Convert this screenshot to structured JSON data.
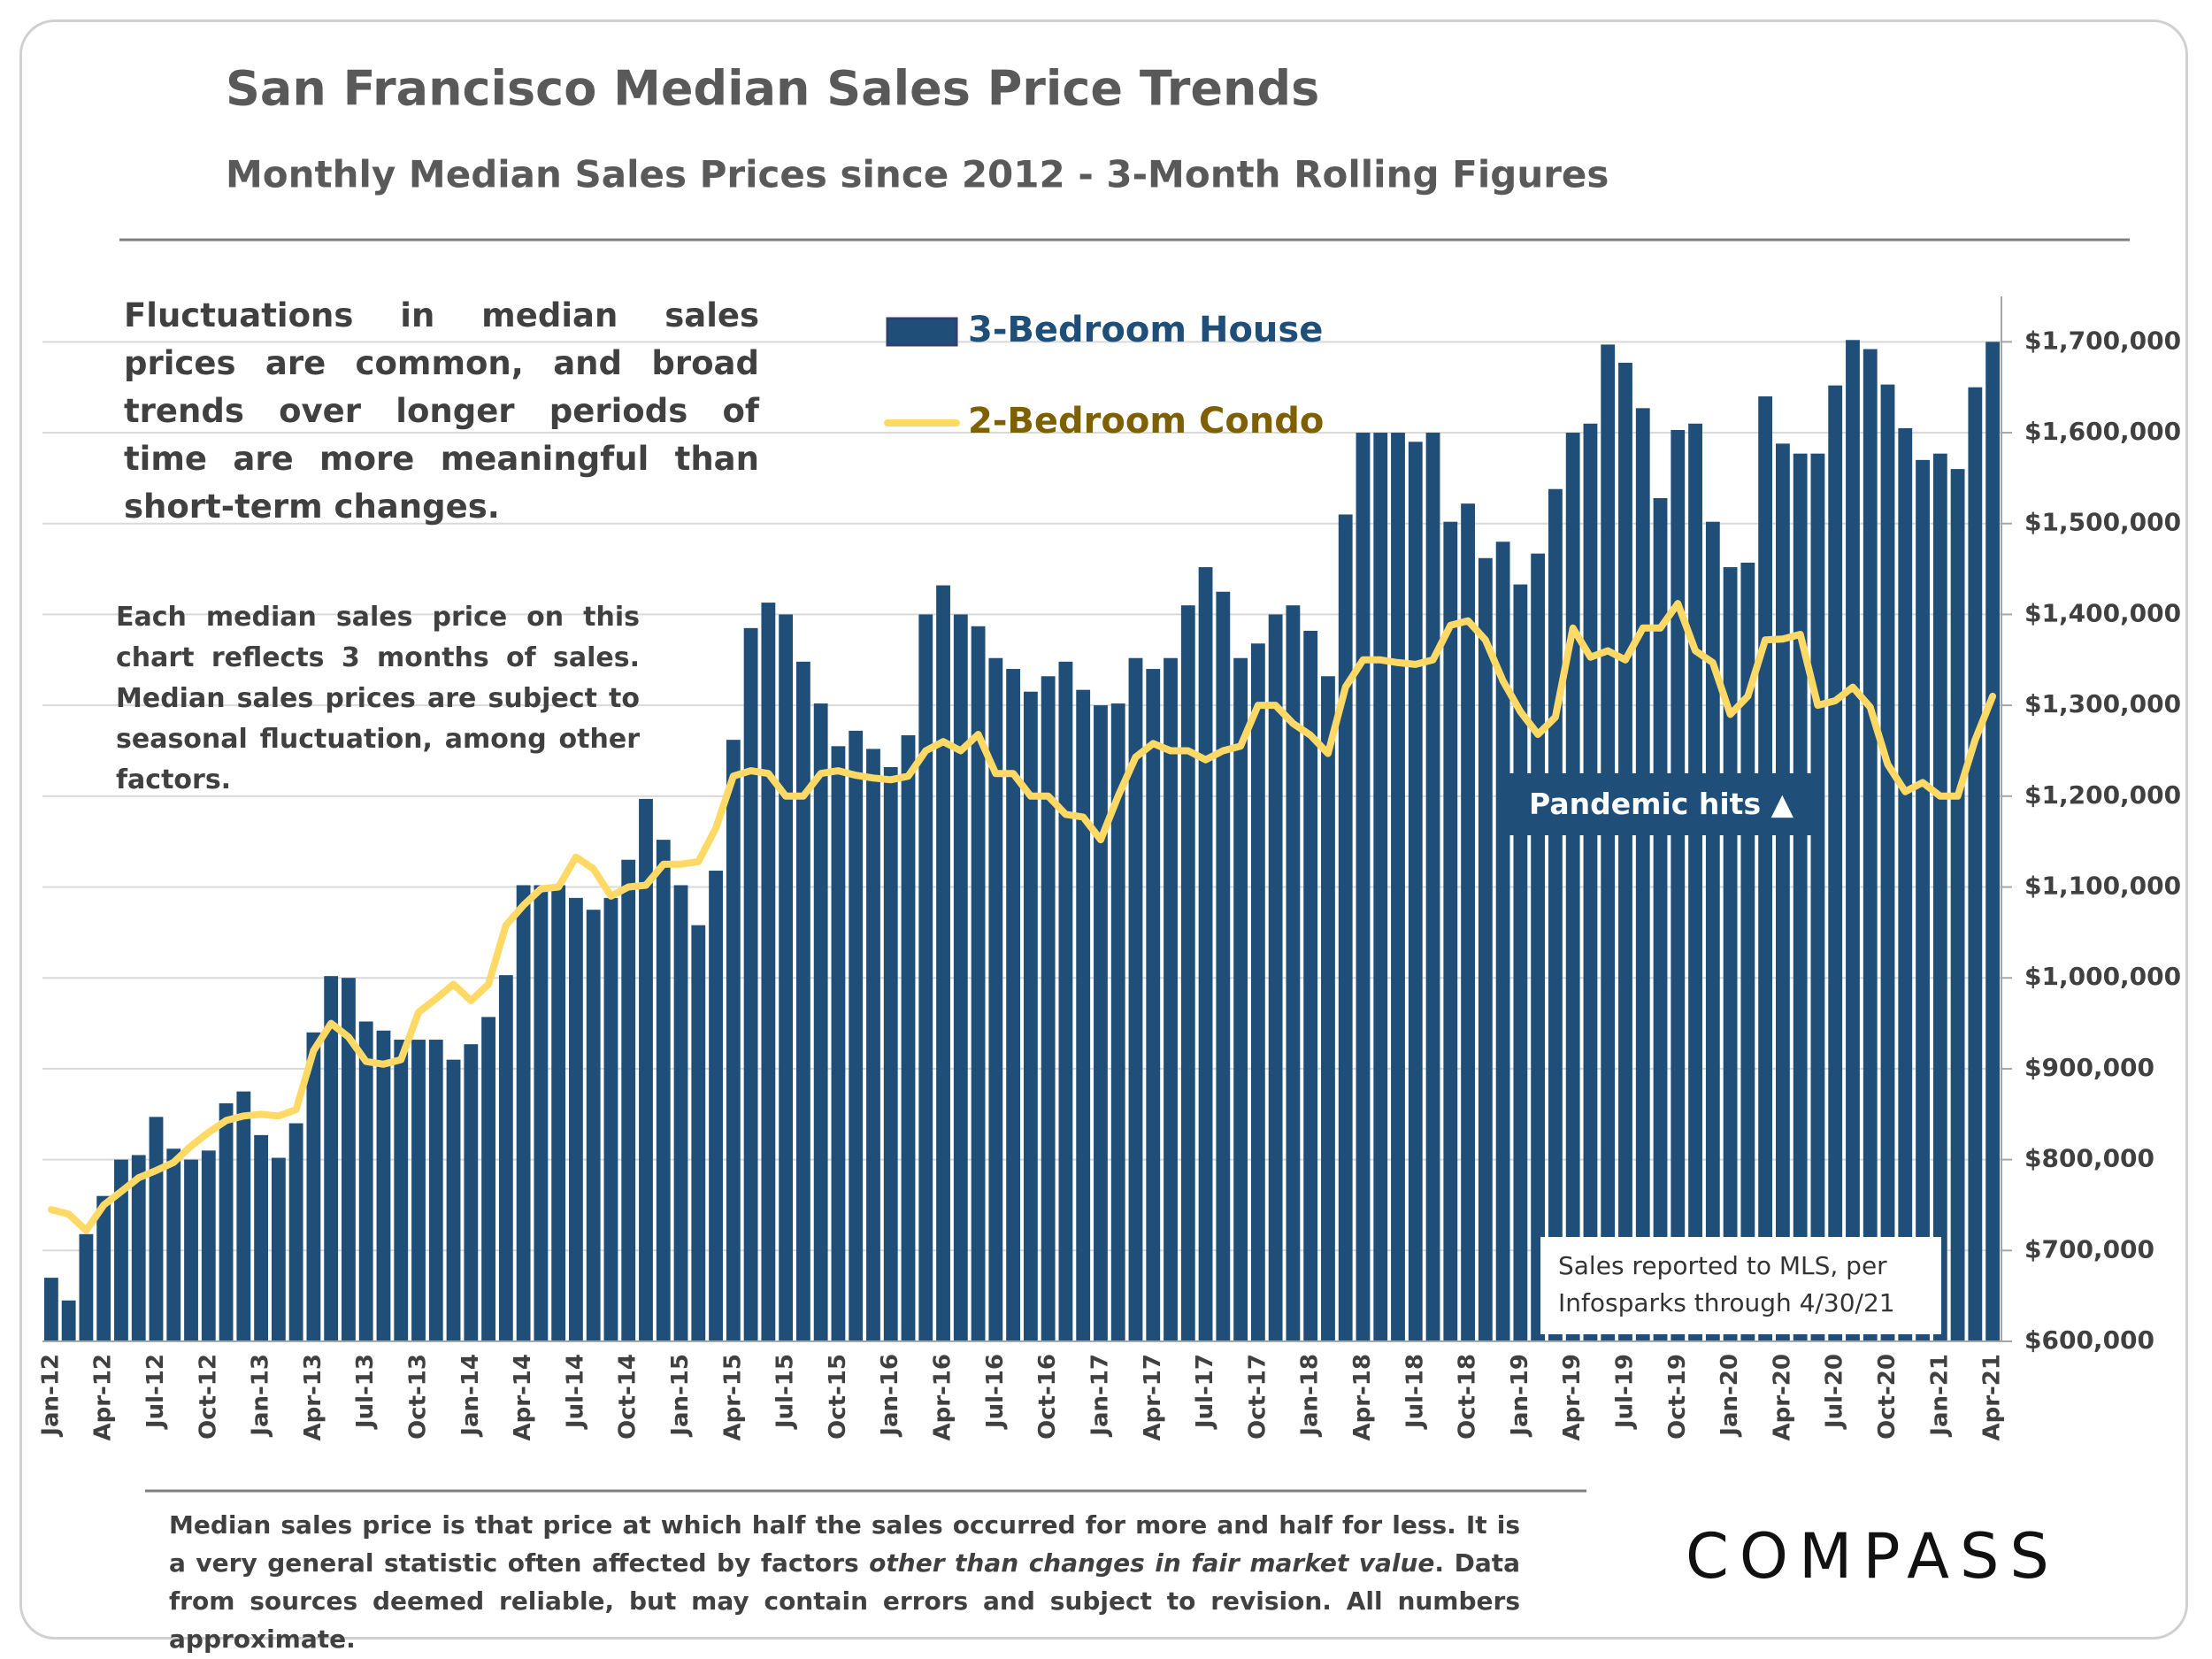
{
  "chart_data": {
    "type": "bar",
    "title": "San Francisco Median Sales Price Trends",
    "subtitle": "Monthly Median Sales Prices since 2012 - 3-Month Rolling Figures",
    "annotations": [
      "Fluctuations in median sales prices are common, and broad trends over longer periods of time are more meaningful than short-term changes.",
      "Each median sales price on this chart reflects 3 months of sales. Median sales prices are subject to seasonal fluctuation, among other factors.",
      "Pandemic hits ▲"
    ],
    "source": [
      "Sales reported to MLS, per",
      "Infosparks through 4/30/21"
    ],
    "footnote": [
      "Median sales price is that price at which half the sales occurred for more and half for less. It is a very general statistic often affected by factors ",
      "other than changes in fair market value",
      ". Data from sources deemed reliable, but may contain errors and subject to revision. All numbers approximate."
    ],
    "logo": "COMPASS",
    "categories": [
      "Jan-12",
      null,
      null,
      "Apr-12",
      null,
      null,
      "Jul-12",
      null,
      null,
      "Oct-12",
      null,
      null,
      "Jan-13",
      null,
      null,
      "Apr-13",
      null,
      null,
      "Jul-13",
      null,
      null,
      "Oct-13",
      null,
      null,
      "Jan-14",
      null,
      null,
      "Apr-14",
      null,
      null,
      "Jul-14",
      null,
      null,
      "Oct-14",
      null,
      null,
      "Jan-15",
      null,
      null,
      "Apr-15",
      null,
      null,
      "Jul-15",
      null,
      null,
      "Oct-15",
      null,
      null,
      "Jan-16",
      null,
      null,
      "Apr-16",
      null,
      null,
      "Jul-16",
      null,
      null,
      "Oct-16",
      null,
      null,
      "Jan-17",
      null,
      null,
      "Apr-17",
      null,
      null,
      "Jul-17",
      null,
      null,
      "Oct-17",
      null,
      null,
      "Jan-18",
      null,
      null,
      "Apr-18",
      null,
      null,
      "Jul-18",
      null,
      null,
      "Oct-18",
      null,
      null,
      "Jan-19",
      null,
      null,
      "Apr-19",
      null,
      null,
      "Jul-19",
      null,
      null,
      "Oct-19",
      null,
      null,
      "Jan-20",
      null,
      null,
      "Apr-20",
      null,
      null,
      "Jul-20",
      null,
      null,
      "Oct-20",
      null,
      null,
      "Jan-21",
      null,
      null,
      "Apr-21"
    ],
    "series": [
      {
        "name": "3-Bedroom House",
        "type": "bar",
        "color": "#1f4e79",
        "values": [
          670000,
          645000,
          718000,
          760000,
          800000,
          805000,
          847000,
          812000,
          800000,
          810000,
          862000,
          875000,
          827000,
          802000,
          840000,
          940000,
          1002000,
          1000000,
          952000,
          942000,
          932000,
          932000,
          932000,
          910000,
          927000,
          957000,
          1003000,
          1102000,
          1102000,
          1102000,
          1088000,
          1075000,
          1088000,
          1130000,
          1197000,
          1152000,
          1102000,
          1058000,
          1118000,
          1262000,
          1385000,
          1413000,
          1400000,
          1348000,
          1302000,
          1255000,
          1272000,
          1252000,
          1232000,
          1267000,
          1400000,
          1432000,
          1400000,
          1387000,
          1352000,
          1340000,
          1315000,
          1332000,
          1348000,
          1317000,
          1300000,
          1302000,
          1352000,
          1340000,
          1352000,
          1410000,
          1452000,
          1425000,
          1352000,
          1368000,
          1400000,
          1410000,
          1382000,
          1332000,
          1510000,
          1600000,
          1600000,
          1600000,
          1590000,
          1600000,
          1502000,
          1522000,
          1462000,
          1480000,
          1433000,
          1467000,
          1538000,
          1600000,
          1610000,
          1697000,
          1677000,
          1627000,
          1528000,
          1603000,
          1610000,
          1502000,
          1452000,
          1457000,
          1640000,
          1588000,
          1577000,
          1577000,
          1652000,
          1702000,
          1692000,
          1653000,
          1605000,
          1570000,
          1577000,
          1560000,
          1650000,
          1700000
        ]
      },
      {
        "name": "2-Bedroom Condo",
        "type": "line",
        "color": "#ffd966",
        "values": [
          745000,
          740000,
          722000,
          750000,
          765000,
          780000,
          788000,
          797000,
          815000,
          830000,
          843000,
          848000,
          850000,
          848000,
          855000,
          920000,
          950000,
          935000,
          908000,
          905000,
          910000,
          962000,
          977000,
          993000,
          975000,
          993000,
          1058000,
          1080000,
          1098000,
          1100000,
          1133000,
          1120000,
          1090000,
          1100000,
          1102000,
          1125000,
          1125000,
          1128000,
          1165000,
          1222000,
          1228000,
          1225000,
          1200000,
          1200000,
          1225000,
          1228000,
          1223000,
          1220000,
          1218000,
          1222000,
          1250000,
          1260000,
          1250000,
          1268000,
          1225000,
          1225000,
          1200000,
          1200000,
          1180000,
          1177000,
          1152000,
          1200000,
          1243000,
          1258000,
          1250000,
          1250000,
          1240000,
          1250000,
          1255000,
          1300000,
          1300000,
          1280000,
          1267000,
          1247000,
          1320000,
          1350000,
          1350000,
          1347000,
          1345000,
          1350000,
          1388000,
          1393000,
          1372000,
          1327000,
          1293000,
          1268000,
          1287000,
          1385000,
          1353000,
          1360000,
          1350000,
          1385000,
          1385000,
          1412000,
          1360000,
          1347000,
          1290000,
          1310000,
          1372000,
          1373000,
          1378000,
          1300000,
          1305000,
          1320000,
          1298000,
          1235000,
          1205000,
          1215000,
          1200000,
          1200000,
          1262000,
          1310000
        ]
      }
    ],
    "ylim": [
      600000,
      1750000
    ],
    "yticks": [
      {
        "value": 600000,
        "label": "$600,000"
      },
      {
        "value": 700000,
        "label": "$700,000"
      },
      {
        "value": 800000,
        "label": "$800,000"
      },
      {
        "value": 900000,
        "label": "$900,000"
      },
      {
        "value": 1000000,
        "label": "$1,000,000"
      },
      {
        "value": 1100000,
        "label": "$1,100,000"
      },
      {
        "value": 1200000,
        "label": "$1,200,000"
      },
      {
        "value": 1300000,
        "label": "$1,300,000"
      },
      {
        "value": 1400000,
        "label": "$1,400,000"
      },
      {
        "value": 1500000,
        "label": "$1,500,000"
      },
      {
        "value": 1600000,
        "label": "$1,600,000"
      },
      {
        "value": 1700000,
        "label": "$1,700,000"
      }
    ],
    "grid": true,
    "legend": "top"
  }
}
